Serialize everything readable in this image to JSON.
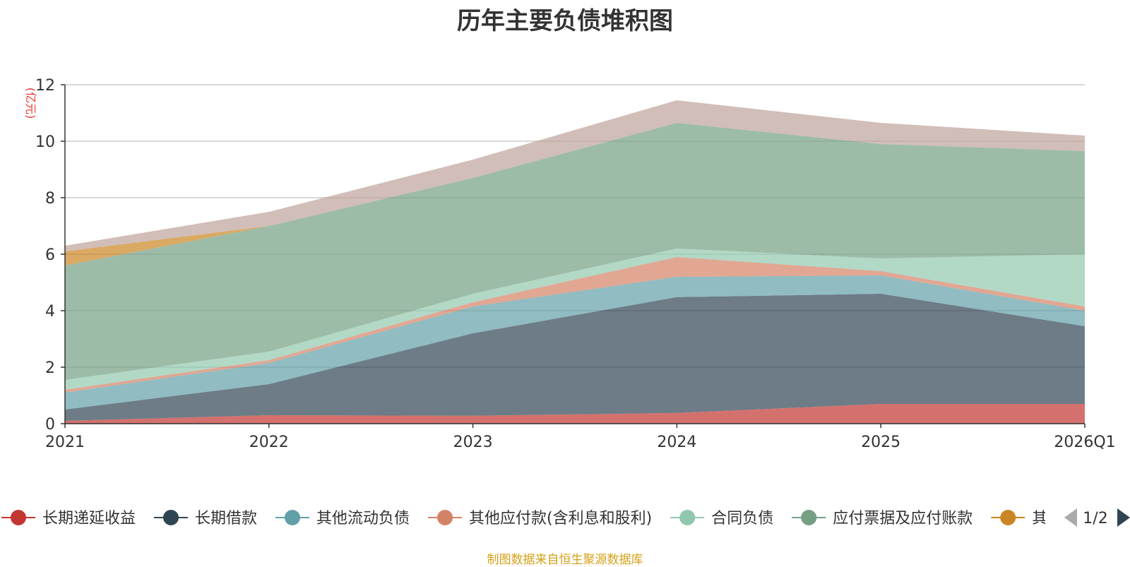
{
  "chart_data": {
    "type": "area",
    "stacked": true,
    "title": "历年主要负债堆积图",
    "ylabel": "(亿元)",
    "xlabel": "",
    "ylim": [
      0,
      12
    ],
    "yticks": [
      0,
      2,
      4,
      6,
      8,
      10,
      12
    ],
    "categories": [
      "2021",
      "2022",
      "2023",
      "2024",
      "2025",
      "2026Q1"
    ],
    "grid": true,
    "series": [
      {
        "name": "长期递延收益",
        "values": [
          0.1,
          0.3,
          0.28,
          0.38,
          0.7,
          0.7
        ],
        "color": "#c23531"
      },
      {
        "name": "长期借款",
        "values": [
          0.4,
          1.1,
          2.92,
          4.1,
          3.9,
          2.75
        ],
        "color": "#2f4554"
      },
      {
        "name": "其他流动负债",
        "values": [
          0.6,
          0.75,
          0.95,
          0.72,
          0.65,
          0.55
        ],
        "color": "#61a0a8"
      },
      {
        "name": "其他应付款(含利息和股利)",
        "values": [
          0.1,
          0.1,
          0.15,
          0.7,
          0.15,
          0.15
        ],
        "color": "#d48265"
      },
      {
        "name": "合同负债",
        "values": [
          0.35,
          0.3,
          0.3,
          0.3,
          0.45,
          1.85
        ],
        "color": "#91c7ae"
      },
      {
        "name": "应付票据及应付账款",
        "values": [
          4.05,
          4.45,
          4.1,
          4.45,
          4.05,
          3.65
        ],
        "color": "#749f83"
      },
      {
        "name": "其他",
        "values": [
          0.5,
          0.0,
          0.0,
          0.0,
          0.0,
          0.0
        ],
        "color": "#ca8622"
      },
      {
        "name": "其他",
        "values": [
          0.2,
          0.5,
          0.65,
          0.8,
          0.75,
          0.55
        ],
        "color": "#bda29a"
      }
    ],
    "legend": {
      "position": "bottom",
      "page_indicator": "1/2"
    },
    "source_note": "制图数据来自恒生聚源数据库",
    "source_color": "#d4a017",
    "unit_color": "#e83a3a"
  }
}
